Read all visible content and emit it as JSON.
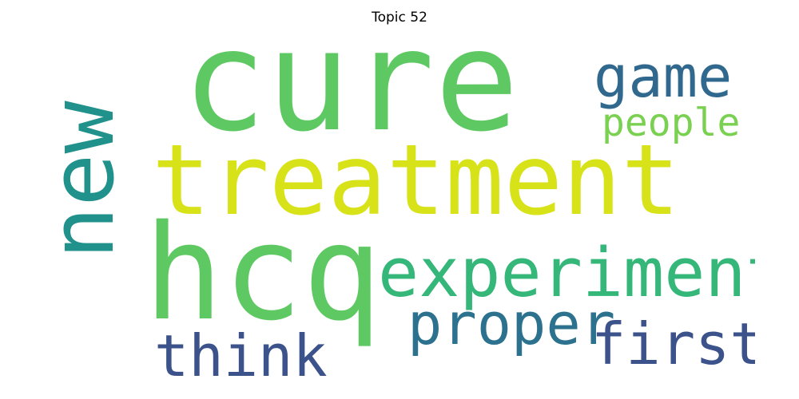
{
  "title": "Topic 52",
  "words": [
    {
      "text": "cure",
      "color": "#5ec962"
    },
    {
      "text": "treatment",
      "color": "#d8e219"
    },
    {
      "text": "hcq",
      "color": "#5ec962"
    },
    {
      "text": "new",
      "color": "#21918c"
    },
    {
      "text": "experiment",
      "color": "#35b779"
    },
    {
      "text": "game",
      "color": "#31688e"
    },
    {
      "text": "people",
      "color": "#7ad151"
    },
    {
      "text": "proper",
      "color": "#2c728e"
    },
    {
      "text": "first",
      "color": "#3b528b"
    },
    {
      "text": "think",
      "color": "#3b528b"
    }
  ]
}
